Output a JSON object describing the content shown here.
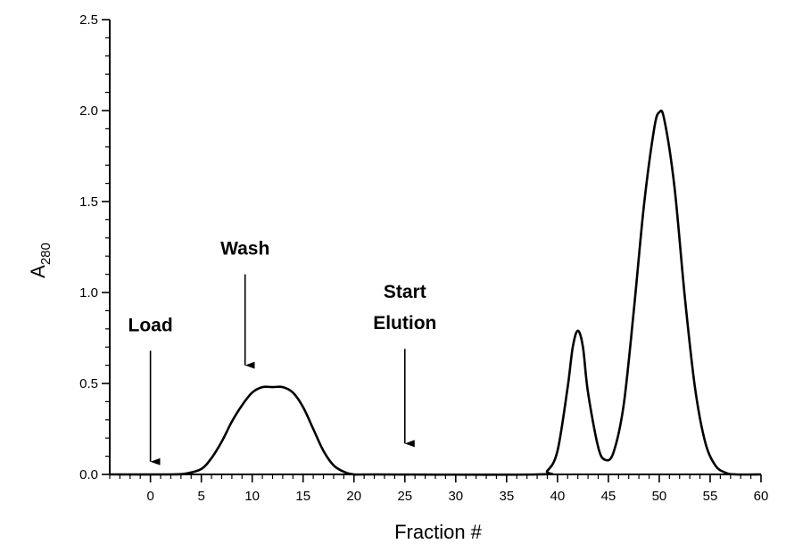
{
  "chart_data": {
    "type": "line",
    "title": "",
    "xlabel": "Fraction #",
    "ylabel": {
      "main": "A",
      "sub": "280"
    },
    "xlim": [
      -4,
      60
    ],
    "ylim": [
      0,
      2.5
    ],
    "x_ticks": [
      0,
      5,
      10,
      15,
      20,
      25,
      30,
      35,
      40,
      45,
      50,
      55,
      60
    ],
    "x_tick_labels": [
      "0",
      "5",
      "10",
      "15",
      "20",
      "25",
      "30",
      "35",
      "40",
      "45",
      "50",
      "55",
      "60"
    ],
    "y_ticks": [
      0,
      0.5,
      1.0,
      1.5,
      2.0,
      2.5
    ],
    "y_tick_labels": [
      "0.0",
      "0.5",
      "1.0",
      "1.5",
      "2.0",
      "2.5"
    ],
    "grid": false,
    "series": [
      {
        "x": [
          -4,
          2,
          3.5,
          5,
          6,
          7,
          8,
          9,
          10,
          11,
          12,
          13,
          14,
          15,
          16,
          17,
          18,
          19,
          20,
          22,
          38,
          39,
          40,
          41,
          41.5,
          42,
          42.5,
          43,
          44,
          44.7,
          45.5,
          46.5,
          47.5,
          48.5,
          49.5,
          50,
          50.5,
          51.5,
          52.5,
          53.5,
          54.5,
          55.5,
          56.5,
          57.5,
          60
        ],
        "y": [
          0,
          0,
          0.005,
          0.03,
          0.09,
          0.18,
          0.29,
          0.38,
          0.45,
          0.48,
          0.48,
          0.48,
          0.45,
          0.37,
          0.25,
          0.13,
          0.05,
          0.015,
          0.0,
          0,
          0,
          0.02,
          0.13,
          0.48,
          0.7,
          0.79,
          0.7,
          0.45,
          0.15,
          0.08,
          0.12,
          0.38,
          0.9,
          1.48,
          1.9,
          1.99,
          1.95,
          1.58,
          0.98,
          0.48,
          0.18,
          0.05,
          0.01,
          0,
          0
        ]
      }
    ],
    "annotations": [
      {
        "lines": [
          "Load"
        ],
        "arrow_x": 0,
        "arrow_from": 0.68,
        "arrow_to": 0.07
      },
      {
        "lines": [
          "Wash"
        ],
        "arrow_x": 9.3,
        "arrow_from": 1.1,
        "arrow_to": 0.6
      },
      {
        "lines": [
          "Start",
          "Elution"
        ],
        "arrow_x": 25,
        "arrow_from": 0.69,
        "arrow_to": 0.17
      }
    ]
  }
}
